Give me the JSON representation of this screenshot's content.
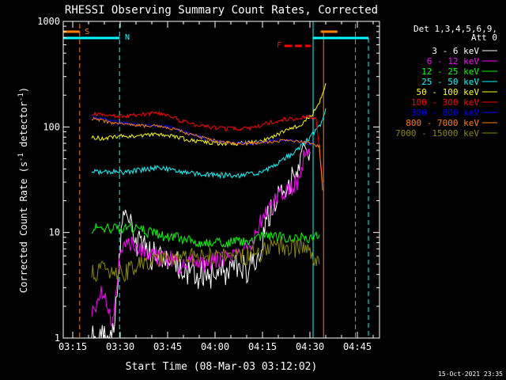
{
  "chart_data": {
    "type": "line",
    "title": "RHESSI Observing Summary Count Rates, Corrected",
    "xlabel": "Start Time (08-Mar-03 03:12:02)",
    "ylabel": "Corrected Count Rate (s⁻¹ detector⁻¹)",
    "ylabel_main": "Corrected Count Rate (s",
    "ylabel_sup1": "-1",
    "ylabel_mid": " detector",
    "ylabel_sup2": "-1",
    "ylabel_end": ")",
    "yscale": "log",
    "xlim": [
      192,
      292
    ],
    "ylim": [
      1,
      1000
    ],
    "x_tick_labels": [
      "03:15",
      "03:30",
      "03:45",
      "04:00",
      "04:15",
      "04:30",
      "04:45"
    ],
    "x_tick_values": [
      195,
      210,
      225,
      240,
      255,
      270,
      285
    ],
    "y_tick_labels": [
      "1",
      "10",
      "100",
      "1000"
    ],
    "y_tick_values": [
      1,
      10,
      100,
      1000
    ],
    "legend": {
      "header1": "Det 1,3,4,5,6,9,",
      "header2": "Att 0",
      "position": "right"
    },
    "series": [
      {
        "name": "3 - 6 keV",
        "color": "#ffffff",
        "x": [
          201,
          203,
          204,
          205,
          206,
          207,
          208,
          209,
          210,
          211,
          212,
          213,
          214,
          215,
          216,
          218,
          220,
          222,
          224,
          226,
          228,
          230,
          232,
          234,
          236,
          238,
          240,
          242,
          244,
          246,
          248,
          250,
          252,
          254,
          256,
          258,
          260,
          262,
          264,
          266,
          267,
          268,
          269,
          270
        ],
        "y": [
          1,
          1,
          1,
          1,
          1,
          1,
          1.4,
          2.2,
          8,
          14,
          14,
          12,
          9,
          8,
          8,
          7,
          6,
          6,
          6,
          5,
          5,
          4.5,
          4,
          4,
          4,
          4,
          4,
          4,
          4.5,
          4.5,
          4.5,
          4.5,
          5,
          7,
          12,
          16,
          22,
          28,
          30,
          35,
          45,
          55,
          60,
          58
        ]
      },
      {
        "name": "6 - 12 keV",
        "color": "#ff00ff",
        "x": [
          201,
          203,
          204,
          205,
          206,
          207,
          208,
          210,
          212,
          214,
          216,
          218,
          220,
          222,
          224,
          226,
          228,
          230,
          232,
          234,
          236,
          238,
          240,
          242,
          244,
          246,
          248,
          250,
          252,
          254,
          256,
          258,
          260,
          262,
          264,
          266,
          268,
          270
        ],
        "y": [
          1.8,
          2,
          3,
          2.5,
          1.8,
          1.5,
          1.6,
          6,
          8,
          8,
          7,
          6.5,
          6,
          6,
          5.5,
          5.5,
          5,
          5,
          5.5,
          5.5,
          5,
          5,
          5.5,
          5.5,
          5.5,
          6,
          6,
          7,
          8,
          12,
          15,
          17,
          22,
          25,
          27,
          30,
          50,
          55
        ]
      },
      {
        "name": "12 - 25 keV",
        "color": "#00ff00",
        "x": [
          201,
          204,
          207,
          210,
          213,
          216,
          219,
          222,
          225,
          228,
          231,
          234,
          237,
          240,
          243,
          246,
          249,
          252,
          255,
          258,
          261,
          264,
          267,
          270,
          273
        ],
        "y": [
          11,
          11,
          11,
          10.5,
          11,
          11,
          10,
          9.5,
          9,
          9,
          8.5,
          8,
          8,
          8,
          8,
          8,
          8.2,
          8.5,
          9,
          9,
          9,
          8.8,
          9,
          9,
          9.5
        ]
      },
      {
        "name": "25 - 50 keV",
        "color": "#00ffff",
        "x": [
          201,
          204,
          207,
          210,
          213,
          216,
          219,
          222,
          225,
          228,
          231,
          234,
          237,
          240,
          243,
          246,
          249,
          252,
          255,
          258,
          261,
          264,
          267,
          270,
          273,
          275
        ],
        "y": [
          38,
          37,
          38,
          37,
          38,
          39,
          40,
          41,
          40,
          38,
          37,
          36,
          36,
          35,
          35,
          35,
          35,
          36,
          38,
          42,
          48,
          55,
          65,
          80,
          100,
          150
        ]
      },
      {
        "name": "50 - 100 keV",
        "color": "#ffff00",
        "x": [
          201,
          204,
          207,
          210,
          213,
          216,
          219,
          222,
          225,
          228,
          231,
          234,
          237,
          240,
          243,
          246,
          249,
          252,
          255,
          258,
          261,
          264,
          267,
          270,
          272,
          274,
          275
        ],
        "y": [
          80,
          78,
          80,
          82,
          81,
          82,
          84,
          86,
          84,
          80,
          76,
          73,
          72,
          70,
          70,
          70,
          70,
          71,
          73,
          80,
          88,
          95,
          105,
          125,
          150,
          200,
          260
        ]
      },
      {
        "name": "100 - 300 keV",
        "color": "#ff0000",
        "x": [
          201,
          204,
          207,
          210,
          213,
          216,
          219,
          222,
          225,
          228,
          231,
          234,
          237,
          240,
          243,
          246,
          249,
          252,
          255,
          258,
          261,
          264,
          267,
          270,
          272,
          274
        ],
        "y": [
          135,
          130,
          128,
          125,
          128,
          130,
          132,
          136,
          128,
          118,
          110,
          104,
          100,
          98,
          96,
          96,
          96,
          98,
          104,
          112,
          116,
          120,
          121,
          124,
          120,
          30
        ]
      },
      {
        "name": "300 - 800 keV",
        "color": "#0000ff",
        "x": [
          201,
          204,
          207,
          210,
          213,
          216,
          219,
          222,
          225,
          228,
          231,
          234,
          237,
          240,
          243,
          246,
          249,
          252,
          255,
          258,
          261,
          264,
          267,
          270,
          271
        ],
        "y": [
          125,
          120,
          115,
          110,
          107,
          105,
          103,
          103,
          100,
          95,
          88,
          82,
          78,
          75,
          72,
          70,
          70,
          70,
          72,
          75,
          75,
          74,
          72,
          70,
          68
        ]
      },
      {
        "name": "800 - 7000 keV",
        "color": "#ff7f00",
        "x": [
          201,
          204,
          207,
          210,
          213,
          216,
          219,
          222,
          225,
          228,
          231,
          234,
          237,
          240,
          243,
          246,
          249,
          252,
          255,
          258,
          261,
          264,
          267,
          270,
          273,
          274
        ],
        "y": [
          120,
          116,
          110,
          107,
          105,
          103,
          102,
          102,
          99,
          94,
          87,
          82,
          78,
          74,
          72,
          70,
          70,
          70,
          71,
          72,
          74,
          74,
          72,
          70,
          65,
          25
        ]
      },
      {
        "name": "7000 - 15000 keV",
        "color": "#8b8b00",
        "x": [
          201,
          204,
          207,
          210,
          213,
          216,
          219,
          222,
          225,
          228,
          231,
          234,
          237,
          240,
          243,
          246,
          249,
          252,
          255,
          258,
          261,
          264,
          267,
          270,
          272,
          273
        ],
        "y": [
          4,
          4.5,
          4.5,
          4,
          4.5,
          5,
          5,
          5.5,
          6,
          6,
          6,
          6,
          6,
          6,
          6,
          6,
          6,
          6.2,
          6.5,
          7,
          7,
          7,
          7,
          6.5,
          5.5,
          5
        ]
      }
    ],
    "markers": {
      "S_label": "S",
      "N_label": "N",
      "F_label": "F",
      "S_line_color": "#ff7f00",
      "N_line_color": "#00ffff"
    },
    "footer_timestamp": "15-Oct-2021 23:35"
  }
}
